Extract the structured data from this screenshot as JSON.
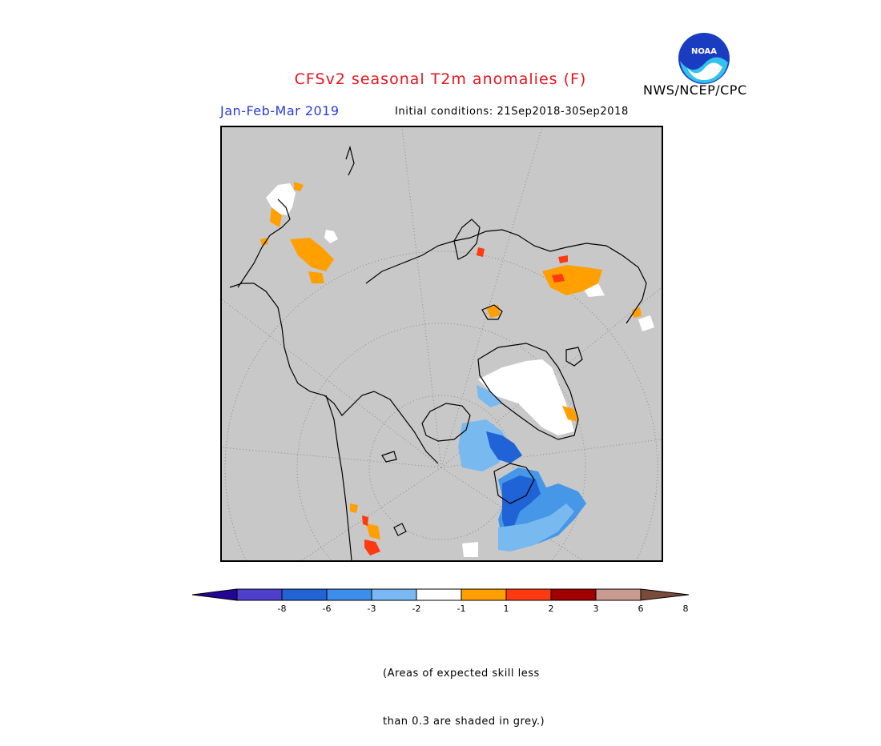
{
  "title": "CFSv2 seasonal T2m anomalies (F)",
  "season": "Jan-Feb-Mar 2019",
  "initial_conditions": "Initial conditions: 21Sep2018-30Sep2018",
  "agency": "NWS/NCEP/CPC",
  "logo_text": "NOAA",
  "note_lines": [
    "(Areas of expected skill less",
    "than 0.3 are shaded in grey.)"
  ],
  "colors": {
    "title": "#e8141b",
    "season": "#2a3bd6",
    "map_background": "#c8c8c8",
    "white": "#ffffff",
    "orange": "#ffa000",
    "red_orange": "#ff3a10",
    "light_blue": "#78b9f0",
    "blue": "#4697e8",
    "dark_blue": "#1f63d6"
  },
  "legend": {
    "ticks": [
      "-8",
      "-6",
      "-3",
      "-2",
      "-1",
      "1",
      "2",
      "3",
      "6",
      "8"
    ],
    "colors": [
      "#240694",
      "#4e3fcc",
      "#2264d6",
      "#3d8eea",
      "#79b8f2",
      "#ffffff",
      "#ffa000",
      "#ff3a10",
      "#a00000",
      "#c89a90",
      "#7a4a3a"
    ]
  }
}
